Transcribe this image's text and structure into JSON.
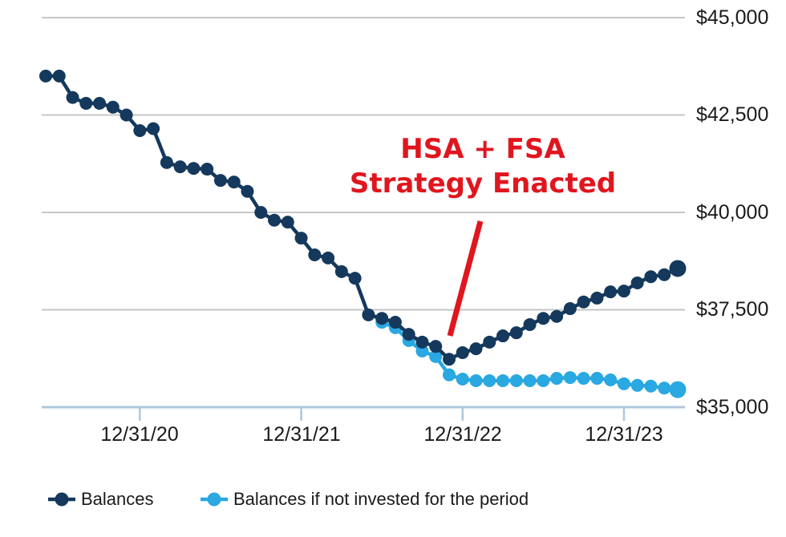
{
  "chart_data": {
    "type": "line",
    "title": "",
    "x_axis": {
      "tick_labels": [
        "12/31/20",
        "12/31/21",
        "12/31/22",
        "12/31/23"
      ],
      "tick_indices": [
        7,
        19,
        31,
        43
      ],
      "points_total": 48,
      "cadence": "monthly"
    },
    "y_axis": {
      "labels": [
        "$45,000",
        "$42,500",
        "$40,000",
        "$37,500",
        "$35,000"
      ],
      "min": 35000,
      "max": 45000,
      "step": 2500,
      "values": [
        45000,
        42500,
        40000,
        37500,
        35000
      ]
    },
    "series": [
      {
        "name": "Balances",
        "color": "#14395c",
        "values": [
          43500,
          43500,
          42950,
          42800,
          42800,
          42700,
          42500,
          42100,
          42150,
          41280,
          41170,
          41130,
          41110,
          40820,
          40780,
          40540,
          40000,
          39800,
          39750,
          39340,
          38910,
          38830,
          38480,
          38310,
          37370,
          37280,
          37180,
          36870,
          36670,
          36560,
          36230,
          36400,
          36500,
          36670,
          36830,
          36910,
          37120,
          37280,
          37330,
          37530,
          37700,
          37800,
          37960,
          37980,
          38190,
          38350,
          38400,
          38560
        ]
      },
      {
        "name": "Balances if not invested for the period",
        "color": "#29a8e1",
        "values": [
          null,
          null,
          null,
          null,
          null,
          null,
          null,
          null,
          null,
          null,
          null,
          null,
          null,
          null,
          null,
          null,
          null,
          null,
          null,
          null,
          null,
          null,
          null,
          null,
          null,
          37180,
          37040,
          36710,
          36440,
          36300,
          35830,
          35720,
          35680,
          35680,
          35680,
          35680,
          35680,
          35680,
          35740,
          35760,
          35740,
          35740,
          35700,
          35600,
          35560,
          35540,
          35490,
          35450
        ]
      }
    ],
    "annotation": {
      "line1": "HSA + FSA",
      "line2": "Strategy Enacted",
      "color": "#e0161f"
    },
    "legend": {
      "position": "bottom",
      "items": [
        "Balances",
        "Balances if not invested for the period"
      ]
    },
    "grid": "horizontal",
    "colors": {
      "gridline": "#c6c6c6",
      "axis": "#afc7db",
      "text": "#1a1a1a"
    }
  }
}
